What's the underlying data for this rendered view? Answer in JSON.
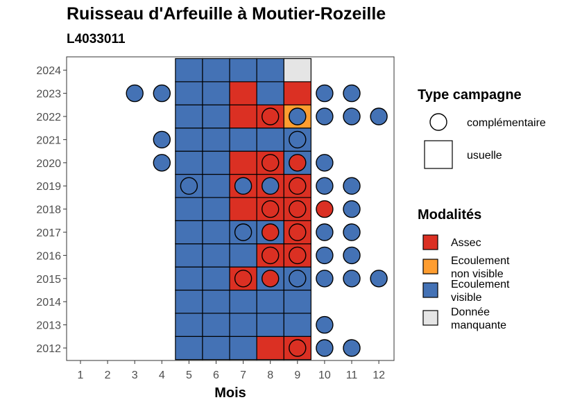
{
  "chart_data": {
    "type": "heatmap",
    "title": "Ruisseau d'Arfeuille à Moutier-Rozeille",
    "subtitle": "L4033011",
    "xlabel": "Mois",
    "ylabel": "",
    "x_ticks": [
      "1",
      "2",
      "3",
      "4",
      "5",
      "6",
      "7",
      "8",
      "9",
      "10",
      "11",
      "12"
    ],
    "y_ticks": [
      "2012",
      "2013",
      "2014",
      "2015",
      "2016",
      "2017",
      "2018",
      "2019",
      "2020",
      "2021",
      "2022",
      "2023",
      "2024"
    ],
    "xlim": [
      1,
      12
    ],
    "ylim": [
      2012,
      2024
    ],
    "grid": false,
    "legend_placement": "right",
    "colors": {
      "Assec": "#db3023",
      "Ecoulement non visible": "#fe9d30",
      "Ecoulement visible": "#4472b5",
      "Donnée manquante": "#e5e5e5"
    },
    "usuelle": [
      {
        "year": 2012,
        "months": [
          "Ecoulement visible",
          "Ecoulement visible",
          "Ecoulement visible",
          "Assec",
          "Assec"
        ]
      },
      {
        "year": 2013,
        "months": [
          "Ecoulement visible",
          "Ecoulement visible",
          "Ecoulement visible",
          "Ecoulement visible",
          "Ecoulement visible"
        ]
      },
      {
        "year": 2014,
        "months": [
          "Ecoulement visible",
          "Ecoulement visible",
          "Ecoulement visible",
          "Ecoulement visible",
          "Ecoulement visible"
        ]
      },
      {
        "year": 2015,
        "months": [
          "Ecoulement visible",
          "Ecoulement visible",
          "Assec",
          "Ecoulement visible",
          "Ecoulement visible"
        ]
      },
      {
        "year": 2016,
        "months": [
          "Ecoulement visible",
          "Ecoulement visible",
          "Ecoulement visible",
          "Assec",
          "Assec"
        ]
      },
      {
        "year": 2017,
        "months": [
          "Ecoulement visible",
          "Ecoulement visible",
          "Ecoulement visible",
          "Ecoulement visible",
          "Assec"
        ]
      },
      {
        "year": 2018,
        "months": [
          "Ecoulement visible",
          "Ecoulement visible",
          "Assec",
          "Assec",
          "Assec"
        ]
      },
      {
        "year": 2019,
        "months": [
          "Ecoulement visible",
          "Ecoulement visible",
          "Assec",
          "Assec",
          "Assec"
        ]
      },
      {
        "year": 2020,
        "months": [
          "Ecoulement visible",
          "Ecoulement visible",
          "Assec",
          "Assec",
          "Ecoulement visible"
        ]
      },
      {
        "year": 2021,
        "months": [
          "Ecoulement visible",
          "Ecoulement visible",
          "Ecoulement visible",
          "Ecoulement visible",
          "Ecoulement visible"
        ]
      },
      {
        "year": 2022,
        "months": [
          "Ecoulement visible",
          "Ecoulement visible",
          "Assec",
          "Assec",
          "Ecoulement non visible"
        ]
      },
      {
        "year": 2023,
        "months": [
          "Ecoulement visible",
          "Ecoulement visible",
          "Assec",
          "Ecoulement visible",
          "Assec"
        ]
      },
      {
        "year": 2024,
        "months": [
          "Ecoulement visible",
          "Ecoulement visible",
          "Ecoulement visible",
          "Ecoulement visible",
          "Donnée manquante"
        ]
      }
    ],
    "usuelle_month_start": 5,
    "complementaire": [
      {
        "year": 2012,
        "month": 9,
        "value": "Assec"
      },
      {
        "year": 2012,
        "month": 10,
        "value": "Ecoulement visible"
      },
      {
        "year": 2012,
        "month": 11,
        "value": "Ecoulement visible"
      },
      {
        "year": 2013,
        "month": 10,
        "value": "Ecoulement visible"
      },
      {
        "year": 2015,
        "month": 7,
        "value": "Assec"
      },
      {
        "year": 2015,
        "month": 8,
        "value": "Assec"
      },
      {
        "year": 2015,
        "month": 9,
        "value": "Ecoulement visible"
      },
      {
        "year": 2015,
        "month": 10,
        "value": "Ecoulement visible"
      },
      {
        "year": 2015,
        "month": 11,
        "value": "Ecoulement visible"
      },
      {
        "year": 2015,
        "month": 12,
        "value": "Ecoulement visible"
      },
      {
        "year": 2016,
        "month": 8,
        "value": "Assec"
      },
      {
        "year": 2016,
        "month": 9,
        "value": "Assec"
      },
      {
        "year": 2016,
        "month": 10,
        "value": "Ecoulement visible"
      },
      {
        "year": 2016,
        "month": 11,
        "value": "Ecoulement visible"
      },
      {
        "year": 2017,
        "month": 7,
        "value": "Ecoulement visible"
      },
      {
        "year": 2017,
        "month": 8,
        "value": "Assec"
      },
      {
        "year": 2017,
        "month": 9,
        "value": "Assec"
      },
      {
        "year": 2017,
        "month": 10,
        "value": "Ecoulement visible"
      },
      {
        "year": 2017,
        "month": 11,
        "value": "Ecoulement visible"
      },
      {
        "year": 2018,
        "month": 8,
        "value": "Assec"
      },
      {
        "year": 2018,
        "month": 9,
        "value": "Assec"
      },
      {
        "year": 2018,
        "month": 10,
        "value": "Assec"
      },
      {
        "year": 2018,
        "month": 11,
        "value": "Ecoulement visible"
      },
      {
        "year": 2019,
        "month": 5,
        "value": "Ecoulement visible"
      },
      {
        "year": 2019,
        "month": 7,
        "value": "Ecoulement visible"
      },
      {
        "year": 2019,
        "month": 8,
        "value": "Ecoulement visible"
      },
      {
        "year": 2019,
        "month": 9,
        "value": "Assec"
      },
      {
        "year": 2019,
        "month": 10,
        "value": "Ecoulement visible"
      },
      {
        "year": 2019,
        "month": 11,
        "value": "Ecoulement visible"
      },
      {
        "year": 2020,
        "month": 4,
        "value": "Ecoulement visible"
      },
      {
        "year": 2020,
        "month": 8,
        "value": "Assec"
      },
      {
        "year": 2020,
        "month": 9,
        "value": "Assec"
      },
      {
        "year": 2020,
        "month": 10,
        "value": "Ecoulement visible"
      },
      {
        "year": 2021,
        "month": 4,
        "value": "Ecoulement visible"
      },
      {
        "year": 2021,
        "month": 9,
        "value": "Ecoulement visible"
      },
      {
        "year": 2022,
        "month": 8,
        "value": "Assec"
      },
      {
        "year": 2022,
        "month": 9,
        "value": "Ecoulement visible"
      },
      {
        "year": 2022,
        "month": 10,
        "value": "Ecoulement visible"
      },
      {
        "year": 2022,
        "month": 11,
        "value": "Ecoulement visible"
      },
      {
        "year": 2022,
        "month": 12,
        "value": "Ecoulement visible"
      },
      {
        "year": 2023,
        "month": 3,
        "value": "Ecoulement visible"
      },
      {
        "year": 2023,
        "month": 4,
        "value": "Ecoulement visible"
      },
      {
        "year": 2023,
        "month": 10,
        "value": "Ecoulement visible"
      },
      {
        "year": 2023,
        "month": 11,
        "value": "Ecoulement visible"
      }
    ],
    "legend": {
      "shape_title": "Type campagne",
      "shape_items": [
        "complémentaire",
        "usuelle"
      ],
      "fill_title": "Modalités",
      "fill_items": [
        {
          "key": "Assec",
          "lines": [
            "Assec"
          ]
        },
        {
          "key": "Ecoulement non visible",
          "lines": [
            "Ecoulement",
            "non visible"
          ]
        },
        {
          "key": "Ecoulement visible",
          "lines": [
            "Ecoulement",
            "visible"
          ]
        },
        {
          "key": "Donnée manquante",
          "lines": [
            "Donnée",
            "manquante"
          ]
        }
      ]
    }
  }
}
